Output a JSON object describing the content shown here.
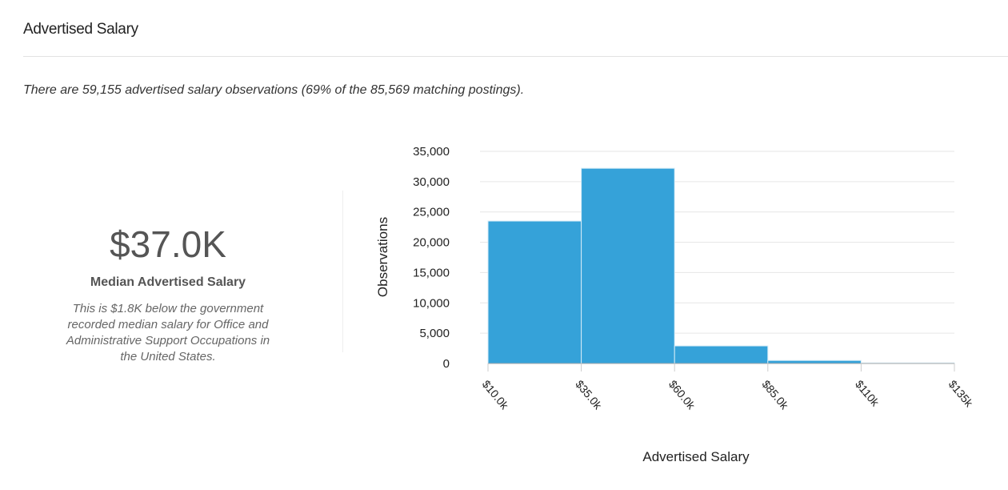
{
  "header": {
    "title": "Advertised Salary"
  },
  "summary": "There are 59,155 advertised salary observations (69% of the 85,569 matching postings).",
  "median": {
    "value": "$37.0K",
    "label": "Median Advertised Salary",
    "note": "This is $1.8K below the government recorded median salary for Office and Administrative Support Occupations in the United States."
  },
  "chart_data": {
    "type": "bar",
    "subtype": "histogram",
    "xlabel": "Advertised Salary",
    "ylabel": "Observations",
    "bin_edges": [
      10000,
      35000,
      60000,
      85000,
      110000,
      135000
    ],
    "x_tick_labels": [
      "$10.0k",
      "$35.0k",
      "$60.0k",
      "$85.0k",
      "$110k",
      "$135k"
    ],
    "values": [
      23500,
      32200,
      2900,
      500,
      100
    ],
    "ylim": [
      0,
      35000
    ],
    "y_ticks": [
      0,
      5000,
      10000,
      15000,
      20000,
      25000,
      30000,
      35000
    ],
    "y_tick_labels": [
      "0",
      "5,000",
      "10,000",
      "15,000",
      "20,000",
      "25,000",
      "30,000",
      "35,000"
    ],
    "grid": true,
    "bar_color": "#35a2d9"
  }
}
